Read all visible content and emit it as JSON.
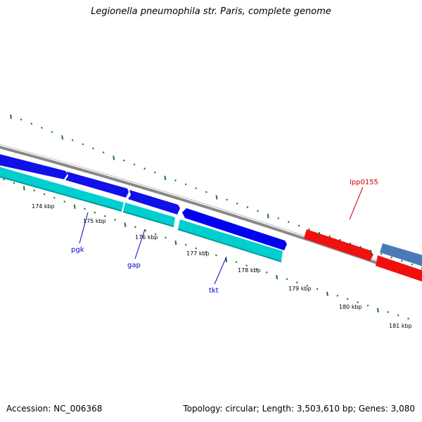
{
  "title": "Legionella pneumophila str. Paris, complete genome",
  "footer": {
    "accession": "Accession: NC_006368",
    "summary": "Topology: circular; Length: 3,503,610 bp; Genes: 3,080"
  },
  "colors": {
    "backbone": "#7f7f7f",
    "tick": "#1a7a1a",
    "forward_gene": "#1010e8",
    "forward_gene_2": "#0000f0",
    "reverse_gene": "#00cfcf",
    "highlight_gene": "#f01010",
    "other_gene": "#4a7ab8",
    "gene_label": "#0000cc",
    "highlight_label": "#cc0000"
  },
  "ruler": {
    "labels": [
      "174 kbp",
      "175 kbp",
      "176 kbp",
      "177 kbp",
      "178 kbp",
      "179 kbp",
      "180 kbp",
      "181 kbp"
    ]
  },
  "gene_labels": [
    {
      "name": "pgk",
      "color": "gene_label"
    },
    {
      "name": "gap",
      "color": "gene_label"
    },
    {
      "name": "tkt",
      "color": "gene_label"
    },
    {
      "name": "lpp0155",
      "color": "highlight_label"
    }
  ]
}
